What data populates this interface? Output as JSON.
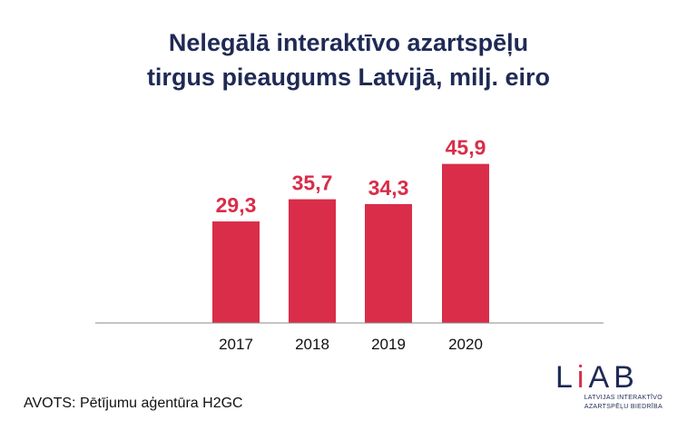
{
  "chart_data": {
    "type": "bar",
    "title_lines": [
      "Nelegālā interaktīvo azartspēļu",
      "tirgus pieaugums Latvijā, milj. eiro"
    ],
    "categories": [
      "2017",
      "2018",
      "2019",
      "2020"
    ],
    "values": [
      29.3,
      35.7,
      34.3,
      45.9
    ],
    "value_labels": [
      "29,3",
      "35,7",
      "34,3",
      "45,9"
    ],
    "ylim": [
      0,
      50
    ],
    "grid": false,
    "bar_color": "#d92d4a",
    "label_color": "#d92d4a"
  },
  "source": "AVOTS: Pētījumu aģentūra H2GC",
  "logo": {
    "mark_l": "L",
    "mark_i": "i",
    "mark_ab": "AB",
    "line1": "LATVIJAS INTERAKTĪVO",
    "line2": "AZARTSPĒĻU BIEDRĪBA"
  }
}
